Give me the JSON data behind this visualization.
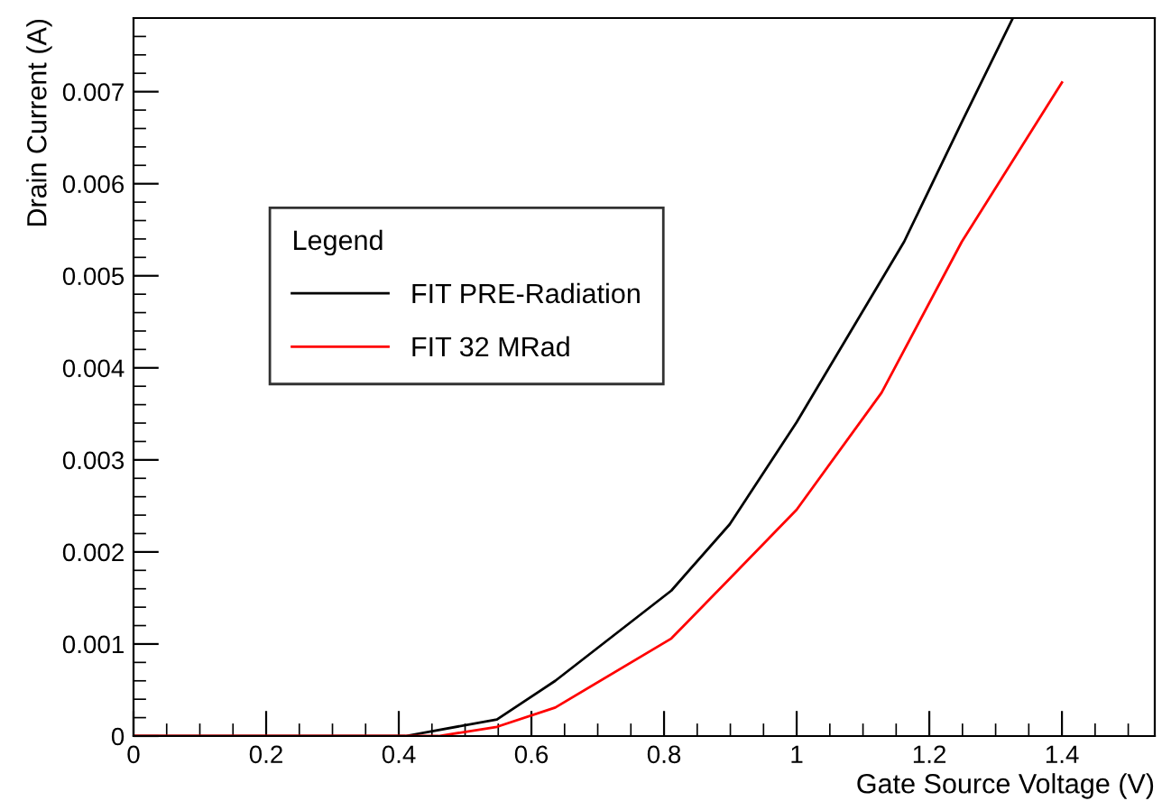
{
  "chart_data": {
    "type": "line",
    "xlabel": "Gate Source Voltage (V)",
    "ylabel": "Drain Current (A)",
    "legend_title": "Legend",
    "xlim": [
      0,
      1.54
    ],
    "ylim": [
      0,
      0.0078
    ],
    "xticks": [
      0,
      0.2,
      0.4,
      0.6,
      0.8,
      1,
      1.2,
      1.4
    ],
    "yticks": [
      0,
      0.001,
      0.002,
      0.003,
      0.004,
      0.005,
      0.006,
      0.007
    ],
    "grid": false,
    "legend": "top left",
    "marker": "none",
    "line_style": "solid",
    "series": [
      {
        "name": "FIT PRE-Radiation",
        "color": "#000000",
        "x": [
          0,
          0.41,
          0.548,
          0.636,
          0.811,
          0.899,
          1.0,
          1.162,
          1.249,
          1.326
        ],
        "values": [
          0,
          0,
          0.00018,
          0.0006,
          0.00158,
          0.0023,
          0.00341,
          0.00537,
          0.00667,
          0.0078
        ]
      },
      {
        "name": "FIT 32 MRad",
        "color": "#ff0000",
        "x": [
          0,
          0.46,
          0.548,
          0.636,
          0.811,
          0.899,
          1.0,
          1.128,
          1.249,
          1.4
        ],
        "values": [
          0,
          0,
          0.0001,
          0.00031,
          0.00106,
          0.00171,
          0.00246,
          0.00373,
          0.00537,
          0.0071
        ]
      }
    ]
  }
}
